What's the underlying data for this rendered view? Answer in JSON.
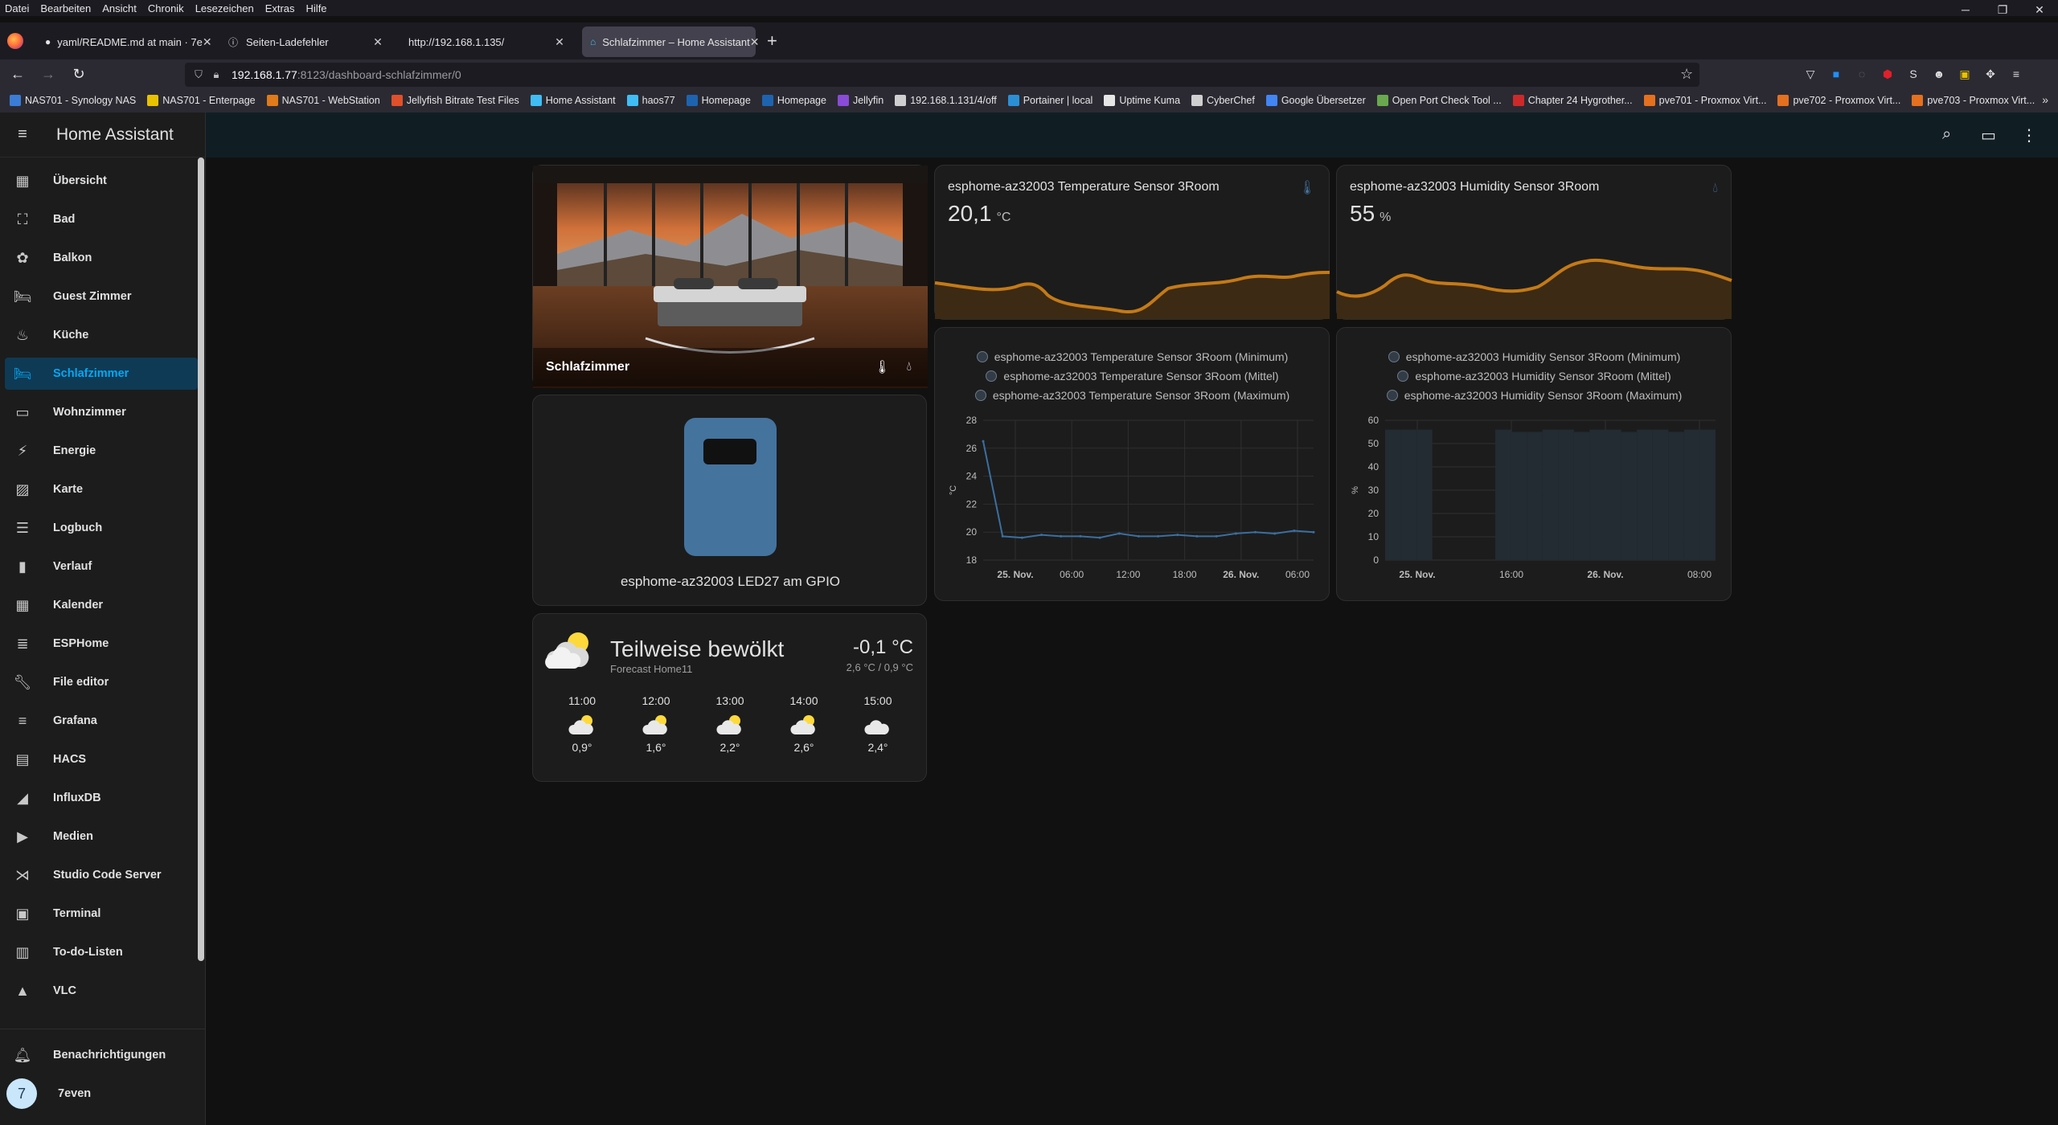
{
  "browser": {
    "menu": [
      "Datei",
      "Bearbeiten",
      "Ansicht",
      "Chronik",
      "Lesezeichen",
      "Extras",
      "Hilfe"
    ],
    "tabs": [
      {
        "title": "yaml/README.md at main · 7e"
      },
      {
        "title": "Seiten-Ladefehler"
      },
      {
        "title": "http://192.168.1.135/"
      },
      {
        "title": "Schlafzimmer – Home Assistant"
      }
    ],
    "url_host": "192.168.1.77",
    "url_path": ":8123/dashboard-schlafzimmer/0",
    "bookmarks": [
      "NAS701 - Synology NAS",
      "NAS701 - Enterpage",
      "NAS701 - WebStation",
      "Jellyfish Bitrate Test Files",
      "Home Assistant",
      "haos77",
      "Homepage",
      "Homepage",
      "Jellyfin",
      "192.168.1.131/4/off",
      "Portainer | local",
      "Uptime Kuma",
      "CyberChef",
      "Google Übersetzer",
      "Open Port Check Tool ...",
      "Chapter 24 Hygrother...",
      "pve701 - Proxmox Virt...",
      "pve702 - Proxmox Virt...",
      "pve703 - Proxmox Virt..."
    ]
  },
  "sidebar": {
    "title": "Home Assistant",
    "items": [
      {
        "label": "Übersicht",
        "icon": "dashboard-icon"
      },
      {
        "label": "Bad",
        "icon": "bathtub-icon"
      },
      {
        "label": "Balkon",
        "icon": "flower-icon"
      },
      {
        "label": "Guest Zimmer",
        "icon": "bed-icon"
      },
      {
        "label": "Küche",
        "icon": "pot-icon"
      },
      {
        "label": "Schlafzimmer",
        "icon": "bed-icon"
      },
      {
        "label": "Wohnzimmer",
        "icon": "sofa-icon"
      },
      {
        "label": "Energie",
        "icon": "lightning-icon"
      },
      {
        "label": "Karte",
        "icon": "map-icon"
      },
      {
        "label": "Logbuch",
        "icon": "list-icon"
      },
      {
        "label": "Verlauf",
        "icon": "chart-icon"
      },
      {
        "label": "Kalender",
        "icon": "calendar-icon"
      },
      {
        "label": "ESPHome",
        "icon": "esphome-icon"
      },
      {
        "label": "File editor",
        "icon": "wrench-icon"
      },
      {
        "label": "Grafana",
        "icon": "grafana-icon"
      },
      {
        "label": "HACS",
        "icon": "hacs-icon"
      },
      {
        "label": "InfluxDB",
        "icon": "influx-icon"
      },
      {
        "label": "Medien",
        "icon": "media-icon"
      },
      {
        "label": "Studio Code Server",
        "icon": "vscode-icon"
      },
      {
        "label": "Terminal",
        "icon": "terminal-icon"
      },
      {
        "label": "To-do-Listen",
        "icon": "clipboard-icon"
      },
      {
        "label": "VLC",
        "icon": "vlc-icon"
      }
    ],
    "notifications": "Benachrichtigungen",
    "user_initial": "7",
    "user_name": "7even",
    "selected": "Schlafzimmer"
  },
  "area_card": {
    "name": "Schlafzimmer"
  },
  "temperature_card": {
    "title": "esphome-az32003 Temperature Sensor 3Room",
    "value": "20,1",
    "unit": "°C",
    "icon": "thermometer-icon"
  },
  "humidity_card": {
    "title": "esphome-az32003 Humidity Sensor 3Room",
    "value": "55",
    "unit": "%",
    "icon": "water-percent-icon"
  },
  "temperature_history": {
    "legend": [
      "esphome-az32003 Temperature Sensor 3Room (Minimum)",
      "esphome-az32003 Temperature Sensor 3Room (Mittel)",
      "esphome-az32003 Temperature Sensor 3Room (Maximum)"
    ]
  },
  "humidity_history": {
    "legend": [
      "esphome-az32003 Humidity Sensor 3Room (Minimum)",
      "esphome-az32003 Humidity Sensor 3Room (Mittel)",
      "esphome-az32003 Humidity Sensor 3Room (Maximum)"
    ]
  },
  "button_card": {
    "name": "esphome-az32003 LED27 am GPIO"
  },
  "weather_card": {
    "condition": "Teilweise bewölkt",
    "name": "Forecast Home11",
    "temperature": "-0,1 °C",
    "range": "2,6 °C / 0,9 °C",
    "forecast": [
      {
        "time": "11:00",
        "temp": "0,9°"
      },
      {
        "time": "12:00",
        "temp": "1,6°"
      },
      {
        "time": "13:00",
        "temp": "2,2°"
      },
      {
        "time": "14:00",
        "temp": "2,6°"
      },
      {
        "time": "15:00",
        "temp": "2,4°"
      }
    ]
  },
  "colors": {
    "accent": "#03a9f4",
    "graph": "#c47a17",
    "history_line": "#3b6fa0",
    "icon_blue": "#44739e"
  },
  "chart_data": [
    {
      "type": "line",
      "ylabel": "°C",
      "ylim": [
        18,
        28
      ],
      "yticks": [
        18,
        20,
        22,
        24,
        26,
        28
      ],
      "xticks": [
        "25. Nov.",
        "06:00",
        "12:00",
        "18:00",
        "26. Nov.",
        "06:00"
      ],
      "series": [
        {
          "values": [
            26.5,
            19.7,
            19.6,
            19.8,
            19.7,
            19.7,
            19.6,
            19.9,
            19.7,
            19.7,
            19.8,
            19.7,
            19.7,
            19.9,
            20.0,
            19.9,
            20.1,
            20.0
          ]
        }
      ]
    },
    {
      "type": "bar",
      "ylabel": "%",
      "ylim": [
        0,
        60
      ],
      "yticks": [
        0,
        10,
        20,
        30,
        40,
        50,
        60
      ],
      "xticks": [
        "25. Nov.",
        "16:00",
        "26. Nov.",
        "08:00"
      ],
      "series": [
        {
          "values": [
            56,
            56,
            56,
            0,
            0,
            0,
            0,
            56,
            55,
            55,
            56,
            56,
            55,
            56,
            56,
            55,
            56,
            56,
            55,
            56,
            56
          ]
        }
      ]
    }
  ]
}
